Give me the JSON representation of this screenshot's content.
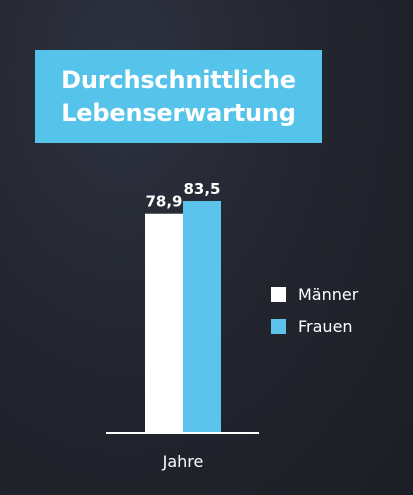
{
  "title": {
    "line1": "Durchschnittliche",
    "line2": "Lebenserwartung"
  },
  "colors": {
    "accent": "#55c3ea",
    "maenner": "#ffffff",
    "frauen": "#5cc3ec",
    "text": "#ffffff",
    "background": "#23262f"
  },
  "chart_data": {
    "type": "bar",
    "title": "Durchschnittliche Lebenserwartung",
    "categories": [
      "Jahre"
    ],
    "xlabel": "Jahre",
    "ylabel": "",
    "ylim": [
      0,
      83.5
    ],
    "grid": false,
    "legend_position": "right",
    "series": [
      {
        "name": "Männer",
        "values": [
          78.9
        ],
        "label": "78,9",
        "color": "#ffffff"
      },
      {
        "name": "Frauen",
        "values": [
          83.5
        ],
        "label": "83,5",
        "color": "#5cc3ec"
      }
    ]
  }
}
